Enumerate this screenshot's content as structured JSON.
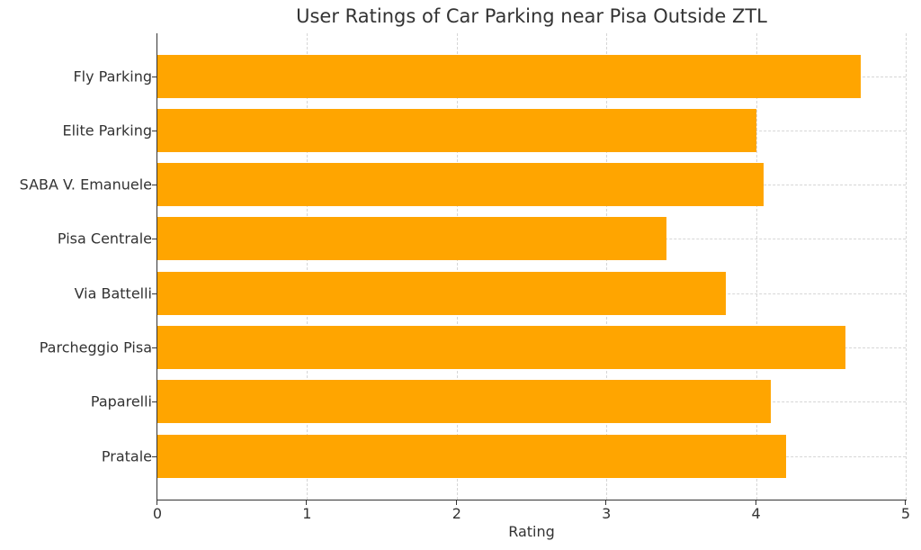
{
  "chart_data": {
    "type": "bar",
    "orientation": "horizontal",
    "title": "User Ratings of Car Parking near Pisa Outside ZTL",
    "xlabel": "Rating",
    "ylabel": "",
    "xlim": [
      0,
      5
    ],
    "xticks": [
      "0",
      "1",
      "2",
      "3",
      "4",
      "5"
    ],
    "grid": true,
    "bar_color": "#FFA500",
    "categories": [
      "Fly Parking",
      "Elite Parking",
      "SABA V. Emanuele",
      "Pisa Centrale",
      "Via Battelli",
      "Parcheggio Pisa",
      "Paparelli",
      "Pratale"
    ],
    "values": [
      4.7,
      4.0,
      4.05,
      3.4,
      3.8,
      4.6,
      4.1,
      4.2
    ]
  }
}
